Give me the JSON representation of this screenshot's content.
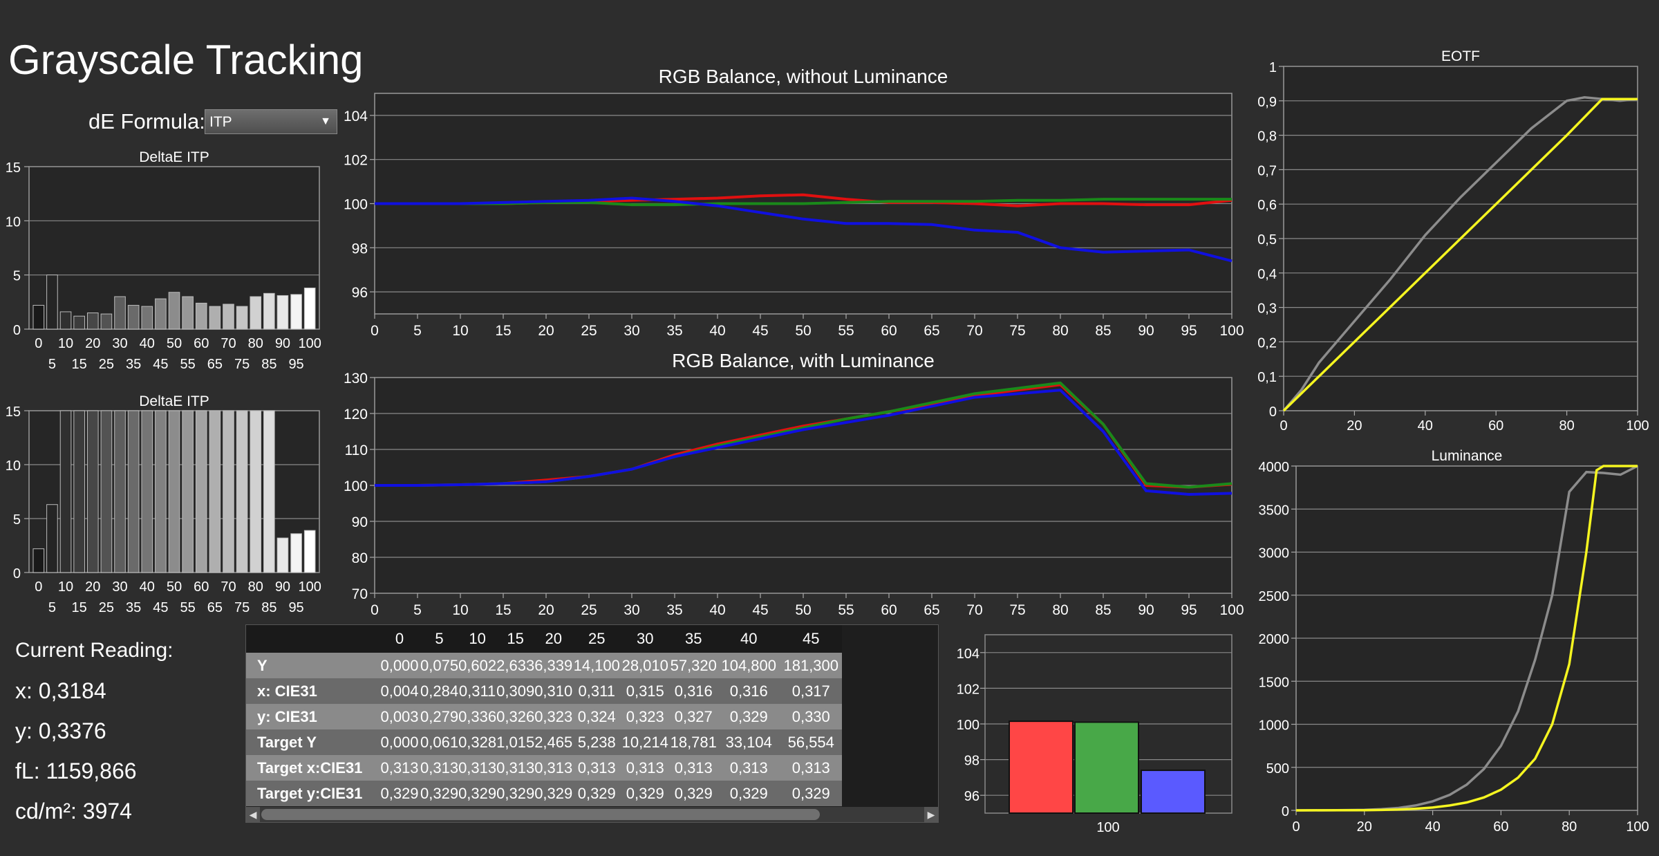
{
  "title": "Grayscale Tracking",
  "de_formula": {
    "label": "dE Formula:",
    "value": "ITP"
  },
  "current_reading": {
    "heading": "Current Reading:",
    "x": "x: 0,3184",
    "y": "y: 0,3376",
    "fl": "fL: 1159,866",
    "cdm2": "cd/m²: 3974"
  },
  "colors": {
    "red": "#e01010",
    "green": "#1a8a1a",
    "blue": "#1010e0",
    "yellow": "#f5f520",
    "gray": "#8c8c8c"
  },
  "table": {
    "columns": [
      "0",
      "5",
      "10",
      "15",
      "20",
      "25",
      "30",
      "35",
      "40",
      "45"
    ],
    "rows": [
      {
        "label": "Y",
        "values": [
          "0,000",
          "0,075",
          "0,602",
          "2,633",
          "6,339",
          "14,100",
          "28,010",
          "57,320",
          "104,800",
          "181,300"
        ]
      },
      {
        "label": "x: CIE31",
        "values": [
          "0,004",
          "0,284",
          "0,311",
          "0,309",
          "0,310",
          "0,311",
          "0,315",
          "0,316",
          "0,316",
          "0,317"
        ]
      },
      {
        "label": "y: CIE31",
        "values": [
          "0,003",
          "0,279",
          "0,336",
          "0,326",
          "0,323",
          "0,324",
          "0,323",
          "0,327",
          "0,329",
          "0,330"
        ]
      },
      {
        "label": "Target Y",
        "values": [
          "0,000",
          "0,061",
          "0,328",
          "1,015",
          "2,465",
          "5,238",
          "10,214",
          "18,781",
          "33,104",
          "56,554"
        ]
      },
      {
        "label": "Target x:CIE31",
        "values": [
          "0,313",
          "0,313",
          "0,313",
          "0,313",
          "0,313",
          "0,313",
          "0,313",
          "0,313",
          "0,313",
          "0,313"
        ]
      },
      {
        "label": "Target y:CIE31",
        "values": [
          "0,329",
          "0,329",
          "0,329",
          "0,329",
          "0,329",
          "0,329",
          "0,329",
          "0,329",
          "0,329",
          "0,329"
        ]
      }
    ]
  },
  "chart_data": [
    {
      "id": "deltae1",
      "type": "bar",
      "title": "DeltaE ITP",
      "categories": [
        0,
        5,
        10,
        15,
        20,
        25,
        30,
        35,
        40,
        45,
        50,
        55,
        60,
        65,
        70,
        75,
        80,
        85,
        90,
        95,
        100
      ],
      "values": [
        2.2,
        5.0,
        1.6,
        1.2,
        1.5,
        1.4,
        3.0,
        2.2,
        2.1,
        2.8,
        3.4,
        3.0,
        2.4,
        2.1,
        2.3,
        2.1,
        3.0,
        3.3,
        3.1,
        3.2,
        3.8
      ],
      "ylim": [
        0,
        15
      ],
      "yticks": [
        0,
        5,
        10,
        15
      ],
      "xticks_top": [
        "0",
        "10",
        "20",
        "30",
        "40",
        "50",
        "60",
        "70",
        "80",
        "90",
        "100"
      ],
      "xticks_bottom": [
        "5",
        "15",
        "25",
        "35",
        "45",
        "55",
        "65",
        "75",
        "85",
        "95"
      ]
    },
    {
      "id": "deltae2",
      "type": "bar",
      "title": "DeltaE ITP",
      "categories": [
        0,
        5,
        10,
        15,
        20,
        25,
        30,
        35,
        40,
        45,
        50,
        55,
        60,
        65,
        70,
        75,
        80,
        85,
        90,
        95,
        100
      ],
      "values": [
        2.2,
        6.3,
        15,
        15,
        15,
        15,
        15,
        15,
        15,
        15,
        15,
        15,
        15,
        15,
        15,
        15,
        15,
        15,
        3.2,
        3.6,
        3.9
      ],
      "ylim": [
        0,
        15
      ],
      "yticks": [
        0,
        5,
        10,
        15
      ],
      "xticks_top": [
        "0",
        "10",
        "20",
        "30",
        "40",
        "50",
        "60",
        "70",
        "80",
        "90",
        "100"
      ],
      "xticks_bottom": [
        "5",
        "15",
        "25",
        "35",
        "45",
        "55",
        "65",
        "75",
        "85",
        "95"
      ]
    },
    {
      "id": "rgb1",
      "type": "line",
      "title": "RGB Balance, without Luminance",
      "x": [
        0,
        5,
        10,
        15,
        20,
        25,
        30,
        35,
        40,
        45,
        50,
        55,
        60,
        65,
        70,
        75,
        80,
        85,
        90,
        95,
        100
      ],
      "xticks": [
        0,
        5,
        10,
        15,
        20,
        25,
        30,
        35,
        40,
        45,
        50,
        55,
        60,
        65,
        70,
        75,
        80,
        85,
        90,
        95,
        100
      ],
      "ylim": [
        95,
        105
      ],
      "yticks": [
        96,
        98,
        100,
        102,
        104
      ],
      "series": [
        {
          "color": "red",
          "values": [
            100,
            100,
            100,
            100,
            100.05,
            100.1,
            100.15,
            100.2,
            100.25,
            100.35,
            100.4,
            100.2,
            100.05,
            100.05,
            100,
            99.9,
            100,
            100,
            99.95,
            99.95,
            100.15
          ]
        },
        {
          "color": "green",
          "values": [
            100,
            100,
            100,
            100,
            100.05,
            100.05,
            99.95,
            99.95,
            100,
            100,
            100,
            100.05,
            100.1,
            100.1,
            100.1,
            100.15,
            100.15,
            100.2,
            100.2,
            100.2,
            100.2
          ]
        },
        {
          "color": "blue",
          "values": [
            100,
            100,
            100,
            100.05,
            100.1,
            100.15,
            100.25,
            100.1,
            99.9,
            99.6,
            99.3,
            99.1,
            99.1,
            99.05,
            98.8,
            98.7,
            98,
            97.8,
            97.85,
            97.9,
            97.4
          ]
        }
      ]
    },
    {
      "id": "rgb2",
      "type": "line",
      "title": "RGB Balance, with Luminance",
      "x": [
        0,
        5,
        10,
        15,
        20,
        25,
        30,
        35,
        40,
        45,
        50,
        55,
        60,
        65,
        70,
        75,
        80,
        85,
        90,
        95,
        100
      ],
      "xticks": [
        0,
        5,
        10,
        15,
        20,
        25,
        30,
        35,
        40,
        45,
        50,
        55,
        60,
        65,
        70,
        75,
        80,
        85,
        90,
        95,
        100
      ],
      "ylim": [
        70,
        130
      ],
      "yticks": [
        70,
        80,
        90,
        100,
        110,
        120,
        130
      ],
      "series": [
        {
          "color": "red",
          "values": [
            100,
            100,
            100.2,
            100.5,
            101.5,
            102.5,
            104.5,
            108.5,
            111.5,
            114,
            116.5,
            118.5,
            120.5,
            122.5,
            125,
            126.5,
            128,
            117,
            100,
            99.5,
            100.3
          ]
        },
        {
          "color": "green",
          "values": [
            100,
            100,
            100.2,
            100.5,
            101,
            102.5,
            104.5,
            108,
            111,
            113.5,
            116,
            118.5,
            120.5,
            123,
            125.5,
            127,
            128.5,
            117,
            100.5,
            99.5,
            100.5
          ]
        },
        {
          "color": "blue",
          "values": [
            100,
            100,
            100.2,
            100.5,
            101,
            102.5,
            104.5,
            108,
            110.5,
            113,
            115.5,
            117.5,
            119.5,
            122,
            124.5,
            125.5,
            126.5,
            115,
            98.5,
            97.5,
            97.8
          ]
        }
      ]
    },
    {
      "id": "eotf",
      "type": "line",
      "title": "EOTF",
      "xlim": [
        0,
        100
      ],
      "xticks": [
        0,
        20,
        40,
        60,
        80,
        100
      ],
      "ylim": [
        0,
        1
      ],
      "yticks": [
        "0",
        "0,1",
        "0,2",
        "0,3",
        "0,4",
        "0,5",
        "0,6",
        "0,7",
        "0,8",
        "0,9",
        "1"
      ],
      "series": [
        {
          "color": "gray",
          "x": [
            0,
            5,
            10,
            15,
            20,
            30,
            40,
            50,
            60,
            70,
            80,
            85,
            90,
            95,
            100
          ],
          "values": [
            0,
            0.06,
            0.14,
            0.2,
            0.26,
            0.38,
            0.51,
            0.62,
            0.72,
            0.82,
            0.9,
            0.91,
            0.905,
            0.9,
            0.905
          ]
        },
        {
          "color": "yellow",
          "x": [
            0,
            10,
            20,
            30,
            40,
            50,
            60,
            70,
            80,
            90,
            95,
            100
          ],
          "values": [
            0,
            0.1,
            0.2,
            0.3,
            0.4,
            0.5,
            0.6,
            0.7,
            0.8,
            0.905,
            0.905,
            0.905
          ]
        }
      ]
    },
    {
      "id": "luminance",
      "type": "line",
      "title": "Luminance",
      "xlim": [
        0,
        100
      ],
      "xticks": [
        0,
        20,
        40,
        60,
        80,
        100
      ],
      "ylim": [
        0,
        4000
      ],
      "yticks": [
        0,
        500,
        1000,
        1500,
        2000,
        2500,
        3000,
        3500,
        4000
      ],
      "series": [
        {
          "color": "gray",
          "x": [
            0,
            10,
            20,
            25,
            30,
            35,
            40,
            45,
            50,
            55,
            60,
            65,
            70,
            75,
            80,
            85,
            90,
            95,
            100
          ],
          "values": [
            0,
            0.6,
            6,
            14,
            28,
            57,
            105,
            181,
            300,
            480,
            750,
            1150,
            1750,
            2500,
            3700,
            3930,
            3920,
            3900,
            4000
          ]
        },
        {
          "color": "yellow",
          "x": [
            0,
            20,
            25,
            30,
            35,
            40,
            45,
            50,
            55,
            60,
            65,
            70,
            75,
            80,
            85,
            88,
            90,
            95,
            100
          ],
          "values": [
            0,
            2.5,
            5,
            10,
            19,
            33,
            57,
            92,
            150,
            240,
            380,
            600,
            1000,
            1700,
            3000,
            3950,
            4000,
            4000,
            4000
          ]
        }
      ]
    },
    {
      "id": "rgbbar",
      "type": "bar",
      "categories": [
        "100"
      ],
      "ylim": [
        95,
        105
      ],
      "yticks": [
        96,
        98,
        100,
        102,
        104
      ],
      "series": [
        {
          "color": "red",
          "values": [
            100.15
          ]
        },
        {
          "color": "green",
          "values": [
            100.1
          ]
        },
        {
          "color": "blue",
          "values": [
            97.4
          ]
        }
      ]
    }
  ]
}
